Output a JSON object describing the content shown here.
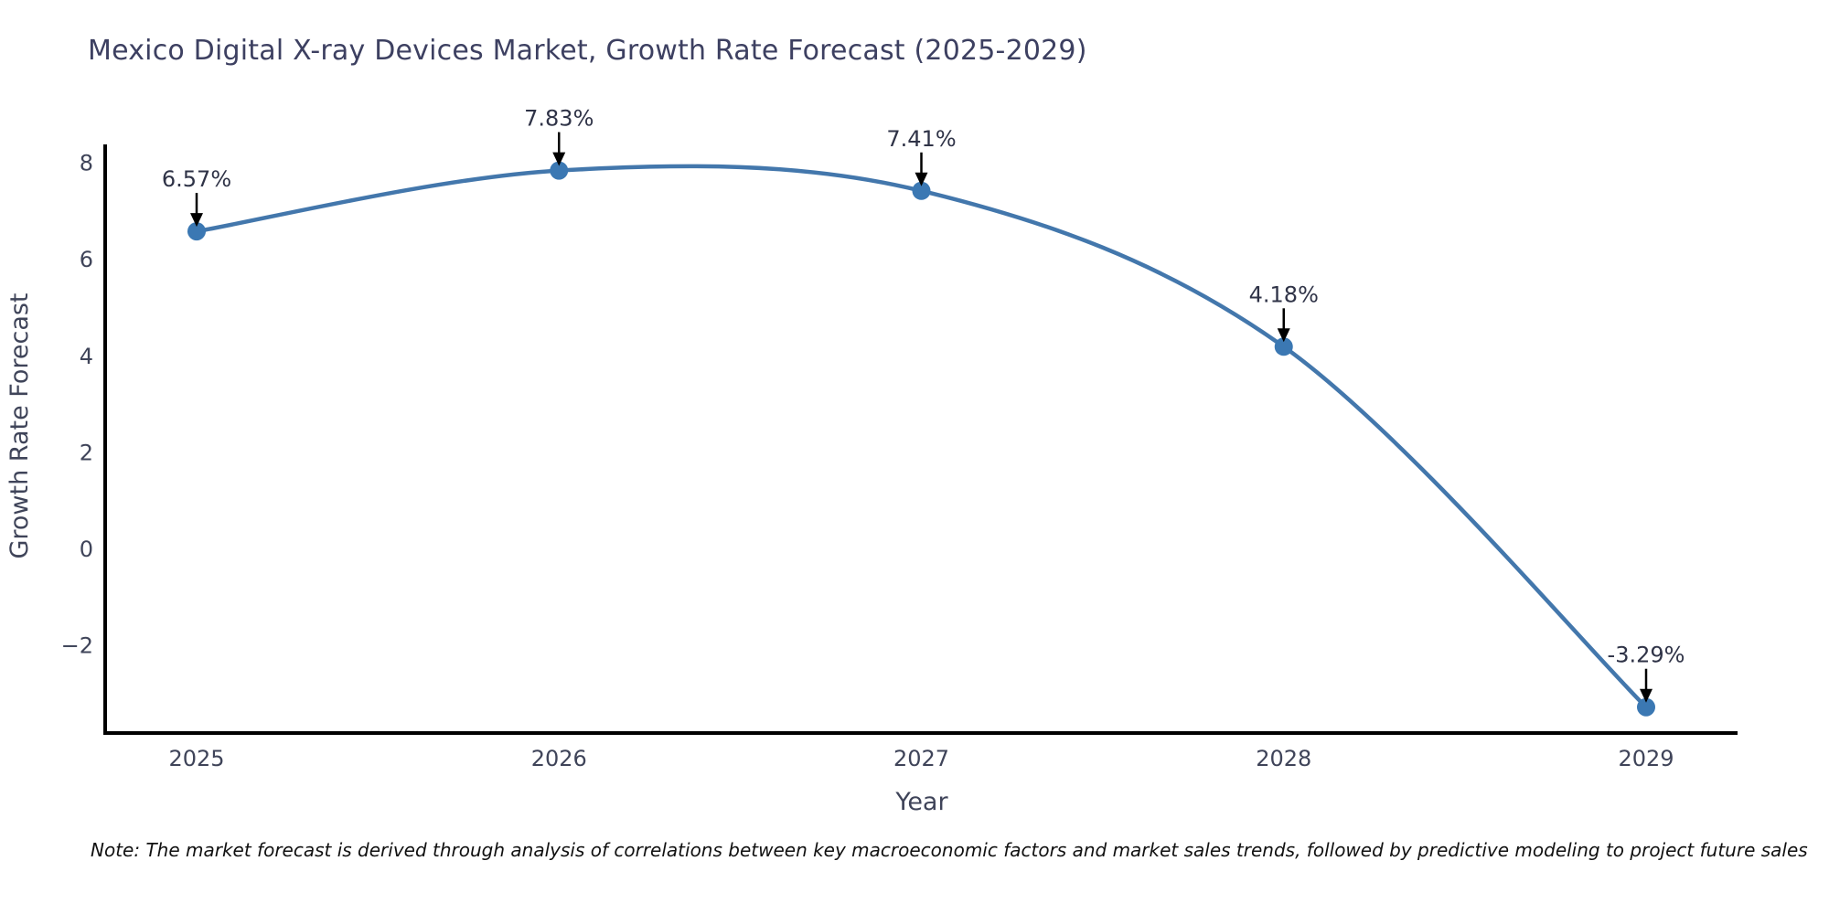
{
  "chart_data": {
    "type": "line",
    "title": "Mexico Digital X-ray Devices Market, Growth Rate Forecast (2025-2029)",
    "xlabel": "Year",
    "ylabel": "Growth Rate Forecast",
    "categories": [
      "2025",
      "2026",
      "2027",
      "2028",
      "2029"
    ],
    "series": [
      {
        "name": "Growth Rate Forecast",
        "values": [
          6.57,
          7.83,
          7.41,
          4.18,
          -3.29
        ]
      }
    ],
    "annotations": [
      "6.57%",
      "7.83%",
      "7.41%",
      "4.18%",
      "-3.29%"
    ],
    "ytick_values": [
      8,
      6,
      4,
      2,
      0,
      -2
    ],
    "ytick_labels": [
      "8",
      "6",
      "4",
      "2",
      "0",
      "−2"
    ],
    "ylim": [
      -3.8,
      8.4
    ],
    "line_shape": "spline",
    "grid": false,
    "legend": "none",
    "marker": "circle",
    "colors": {
      "line": "#4377ac",
      "marker": "#3b78b3",
      "axis": "#000000",
      "title_text": "#3d4061",
      "tick_text": "#3f4459",
      "annotation_text": "#2f3347",
      "arrow": "#000000",
      "note_text": "#111111",
      "background": "#ffffff"
    },
    "note": "Note: The market forecast is derived through analysis of correlations between key macroeconomic factors and market sales trends, followed by predictive modeling to project future sales"
  }
}
